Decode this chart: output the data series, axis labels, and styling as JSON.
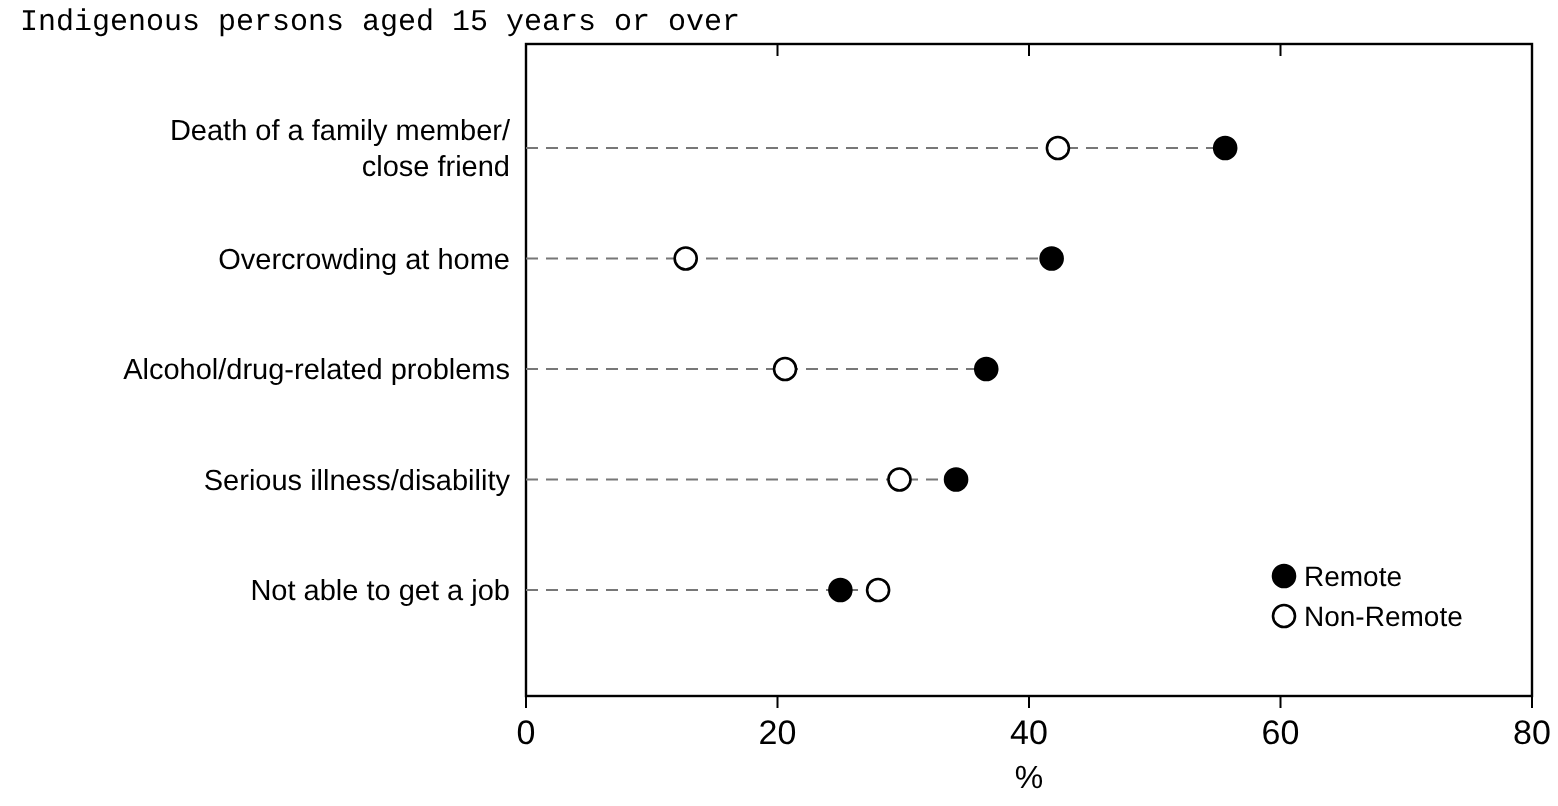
{
  "chart_data": {
    "type": "scatter",
    "orientation": "horizontal",
    "title": "Indigenous persons aged 15 years or over",
    "xlabel": "%",
    "categories": [
      "Death of a family member/ close friend",
      "Overcrowding at home",
      "Alcohol/drug-related problems",
      "Serious illness/disability",
      "Not able to get a job"
    ],
    "series": [
      {
        "name": "Remote",
        "color": "#000000",
        "values": [
          55.6,
          41.8,
          36.6,
          34.2,
          25.0
        ]
      },
      {
        "name": "Non-Remote",
        "color": "#ffffff",
        "values": [
          42.3,
          12.7,
          20.6,
          29.7,
          28.0
        ]
      }
    ],
    "xlim": [
      0,
      80
    ],
    "xticks": [
      0,
      20,
      40,
      60,
      80
    ],
    "marker": "circle",
    "line_style": "dashed",
    "legend": "bottom right",
    "grid": false
  }
}
